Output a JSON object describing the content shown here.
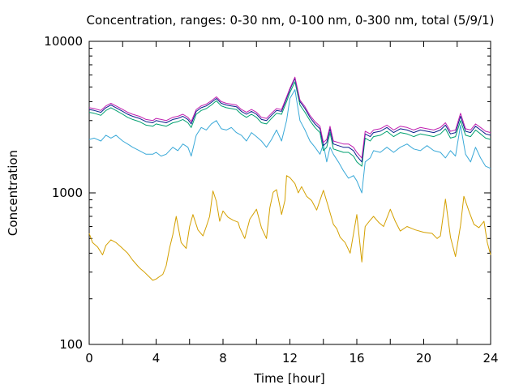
{
  "chart_data": {
    "type": "line",
    "title": "Concentration, ranges: 0-30 nm, 0-100 nm, 0-300 nm, total (5/9/1)",
    "xlabel": "Time [hour]",
    "ylabel": "Concentration",
    "xlim": [
      0,
      24
    ],
    "ylim": [
      100,
      10000
    ],
    "yscale": "log",
    "xticks": [
      "0",
      "4",
      "8",
      "12",
      "16",
      "20",
      "24"
    ],
    "yticks": [
      "100",
      "1000",
      "10000"
    ],
    "grid": false,
    "legend": "none",
    "series": [
      {
        "color": "#d4a000",
        "x": [
          0,
          0.2,
          0.5,
          0.8,
          1.0,
          1.3,
          1.6,
          1.9,
          2.3,
          2.6,
          3.0,
          3.3,
          3.5,
          3.8,
          4.0,
          4.2,
          4.4,
          4.6,
          4.8,
          5.0,
          5.2,
          5.5,
          5.8,
          6.0,
          6.2,
          6.5,
          6.8,
          7.0,
          7.2,
          7.4,
          7.6,
          7.8,
          8.0,
          8.3,
          8.6,
          8.9,
          9.0,
          9.3,
          9.6,
          10.0,
          10.3,
          10.6,
          10.8,
          11.0,
          11.2,
          11.5,
          11.7,
          11.8,
          12.0,
          12.3,
          12.5,
          12.7,
          13.0,
          13.3,
          13.6,
          14.0,
          14.3,
          14.6,
          14.8,
          15.0,
          15.3,
          15.6,
          16.0,
          16.3,
          16.5,
          16.8,
          17.0,
          17.3,
          17.6,
          18.0,
          18.3,
          18.6,
          19.0,
          19.5,
          20.0,
          20.5,
          20.8,
          21.0,
          21.3,
          21.6,
          21.9,
          22.2,
          22.4,
          22.7,
          23.0,
          23.3,
          23.6,
          23.8,
          24.0
        ],
        "y": [
          540,
          470,
          440,
          390,
          450,
          490,
          470,
          440,
          400,
          360,
          320,
          300,
          285,
          265,
          270,
          280,
          290,
          330,
          430,
          530,
          700,
          470,
          430,
          600,
          720,
          570,
          520,
          600,
          700,
          1030,
          880,
          650,
          760,
          690,
          660,
          640,
          590,
          500,
          670,
          780,
          590,
          500,
          800,
          1010,
          1050,
          720,
          890,
          1300,
          1260,
          1150,
          1000,
          1100,
          950,
          890,
          770,
          1040,
          810,
          620,
          580,
          510,
          470,
          400,
          720,
          350,
          600,
          660,
          700,
          640,
          600,
          780,
          650,
          560,
          600,
          570,
          550,
          540,
          500,
          520,
          910,
          510,
          380,
          610,
          950,
          760,
          620,
          590,
          650,
          470,
          390
        ]
      },
      {
        "color": "#3aa9d8",
        "x": [
          0,
          0.3,
          0.7,
          1.0,
          1.3,
          1.6,
          2.0,
          2.3,
          2.6,
          3.0,
          3.4,
          3.8,
          4.0,
          4.3,
          4.6,
          5.0,
          5.3,
          5.6,
          5.9,
          6.1,
          6.4,
          6.7,
          7.0,
          7.3,
          7.6,
          7.9,
          8.2,
          8.5,
          8.8,
          9.1,
          9.4,
          9.7,
          10.0,
          10.3,
          10.6,
          10.9,
          11.2,
          11.5,
          11.8,
          12.0,
          12.3,
          12.6,
          12.9,
          13.2,
          13.5,
          13.8,
          14.0,
          14.2,
          14.4,
          14.6,
          14.9,
          15.2,
          15.5,
          15.8,
          16.0,
          16.3,
          16.5,
          16.8,
          17.0,
          17.4,
          17.8,
          18.2,
          18.6,
          19.0,
          19.4,
          19.8,
          20.2,
          20.6,
          21.0,
          21.3,
          21.6,
          21.9,
          22.2,
          22.5,
          22.8,
          23.1,
          23.4,
          23.7,
          24.0
        ],
        "y": [
          2250,
          2300,
          2200,
          2400,
          2300,
          2400,
          2200,
          2100,
          2000,
          1900,
          1800,
          1800,
          1850,
          1750,
          1800,
          2000,
          1900,
          2100,
          2000,
          1750,
          2400,
          2700,
          2600,
          2850,
          3000,
          2650,
          2600,
          2700,
          2500,
          2400,
          2200,
          2500,
          2350,
          2200,
          2000,
          2250,
          2600,
          2200,
          3000,
          4200,
          4800,
          3000,
          2600,
          2200,
          2000,
          1800,
          2100,
          1600,
          2000,
          1800,
          1600,
          1400,
          1250,
          1300,
          1200,
          1000,
          1600,
          1700,
          1900,
          1850,
          2000,
          1850,
          2000,
          2100,
          1950,
          1900,
          2050,
          1900,
          1850,
          1700,
          1900,
          1750,
          2800,
          1800,
          1600,
          2000,
          1700,
          1500,
          1450
        ]
      },
      {
        "color": "#00a070",
        "x": [
          0,
          0.3,
          0.7,
          1.0,
          1.3,
          1.6,
          2.0,
          2.3,
          2.6,
          3.0,
          3.4,
          3.8,
          4.0,
          4.3,
          4.6,
          5.0,
          5.3,
          5.6,
          5.9,
          6.1,
          6.4,
          6.7,
          7.0,
          7.3,
          7.6,
          7.9,
          8.2,
          8.5,
          8.8,
          9.1,
          9.4,
          9.7,
          10.0,
          10.3,
          10.6,
          10.9,
          11.2,
          11.5,
          11.8,
          12.0,
          12.3,
          12.6,
          12.9,
          13.2,
          13.5,
          13.8,
          14.0,
          14.2,
          14.4,
          14.6,
          14.9,
          15.2,
          15.5,
          15.8,
          16.0,
          16.3,
          16.5,
          16.8,
          17.0,
          17.4,
          17.8,
          18.2,
          18.6,
          19.0,
          19.4,
          19.8,
          20.2,
          20.6,
          21.0,
          21.3,
          21.6,
          21.9,
          22.2,
          22.5,
          22.8,
          23.1,
          23.4,
          23.7,
          24.0
        ],
        "y": [
          3400,
          3350,
          3250,
          3500,
          3650,
          3500,
          3300,
          3150,
          3050,
          2950,
          2800,
          2750,
          2850,
          2800,
          2750,
          2900,
          2950,
          3050,
          2900,
          2700,
          3300,
          3500,
          3600,
          3800,
          4050,
          3750,
          3650,
          3600,
          3550,
          3300,
          3150,
          3300,
          3150,
          2900,
          2850,
          3100,
          3350,
          3300,
          4000,
          4600,
          5400,
          3800,
          3400,
          3000,
          2700,
          2500,
          1900,
          2000,
          2500,
          1950,
          1900,
          1850,
          1850,
          1750,
          1600,
          1500,
          2300,
          2200,
          2350,
          2400,
          2550,
          2350,
          2500,
          2450,
          2350,
          2450,
          2400,
          2350,
          2450,
          2650,
          2300,
          2350,
          3000,
          2400,
          2350,
          2600,
          2450,
          2300,
          2250
        ]
      },
      {
        "color": "#0a1e8c",
        "x": [
          0,
          0.3,
          0.7,
          1.0,
          1.3,
          1.6,
          2.0,
          2.3,
          2.6,
          3.0,
          3.4,
          3.8,
          4.0,
          4.3,
          4.6,
          5.0,
          5.3,
          5.6,
          5.9,
          6.1,
          6.4,
          6.7,
          7.0,
          7.3,
          7.6,
          7.9,
          8.2,
          8.5,
          8.8,
          9.1,
          9.4,
          9.7,
          10.0,
          10.3,
          10.6,
          10.9,
          11.2,
          11.5,
          11.8,
          12.0,
          12.3,
          12.6,
          12.9,
          13.2,
          13.5,
          13.8,
          14.0,
          14.2,
          14.4,
          14.6,
          14.9,
          15.2,
          15.5,
          15.8,
          16.0,
          16.3,
          16.5,
          16.8,
          17.0,
          17.4,
          17.8,
          18.2,
          18.6,
          19.0,
          19.4,
          19.8,
          20.2,
          20.6,
          21.0,
          21.3,
          21.6,
          21.9,
          22.2,
          22.5,
          22.8,
          23.1,
          23.4,
          23.7,
          24.0
        ],
        "y": [
          3550,
          3500,
          3400,
          3650,
          3800,
          3650,
          3450,
          3300,
          3200,
          3100,
          2950,
          2900,
          3000,
          2950,
          2900,
          3050,
          3100,
          3200,
          3050,
          2850,
          3450,
          3650,
          3750,
          3950,
          4200,
          3900,
          3800,
          3750,
          3700,
          3450,
          3300,
          3450,
          3300,
          3050,
          3000,
          3250,
          3500,
          3450,
          4200,
          4800,
          5700,
          4000,
          3600,
          3150,
          2850,
          2650,
          2050,
          2150,
          2650,
          2100,
          2050,
          2000,
          2000,
          1900,
          1750,
          1600,
          2450,
          2350,
          2500,
          2550,
          2700,
          2500,
          2650,
          2600,
          2500,
          2600,
          2550,
          2500,
          2600,
          2800,
          2450,
          2500,
          3200,
          2550,
          2500,
          2750,
          2600,
          2450,
          2400
        ]
      },
      {
        "color": "#c020b0",
        "x": [
          0,
          0.3,
          0.7,
          1.0,
          1.3,
          1.6,
          2.0,
          2.3,
          2.6,
          3.0,
          3.4,
          3.8,
          4.0,
          4.3,
          4.6,
          5.0,
          5.3,
          5.6,
          5.9,
          6.1,
          6.4,
          6.7,
          7.0,
          7.3,
          7.6,
          7.9,
          8.2,
          8.5,
          8.8,
          9.1,
          9.4,
          9.7,
          10.0,
          10.3,
          10.6,
          10.9,
          11.2,
          11.5,
          11.8,
          12.0,
          12.3,
          12.6,
          12.9,
          13.2,
          13.5,
          13.8,
          14.0,
          14.2,
          14.4,
          14.6,
          14.9,
          15.2,
          15.5,
          15.8,
          16.0,
          16.3,
          16.5,
          16.8,
          17.0,
          17.4,
          17.8,
          18.2,
          18.6,
          19.0,
          19.4,
          19.8,
          20.2,
          20.6,
          21.0,
          21.3,
          21.6,
          21.9,
          22.2,
          22.5,
          22.8,
          23.1,
          23.4,
          23.7,
          24.0
        ],
        "y": [
          3650,
          3600,
          3500,
          3750,
          3900,
          3750,
          3550,
          3400,
          3300,
          3200,
          3050,
          3000,
          3100,
          3050,
          3000,
          3150,
          3200,
          3300,
          3150,
          2950,
          3550,
          3750,
          3850,
          4050,
          4300,
          4000,
          3900,
          3850,
          3800,
          3550,
          3400,
          3550,
          3400,
          3150,
          3100,
          3350,
          3600,
          3550,
          4300,
          4900,
          5800,
          4100,
          3700,
          3250,
          2950,
          2750,
          2150,
          2250,
          2750,
          2200,
          2150,
          2100,
          2100,
          2000,
          1850,
          1700,
          2550,
          2450,
          2600,
          2650,
          2800,
          2600,
          2750,
          2700,
          2600,
          2700,
          2650,
          2600,
          2700,
          2900,
          2550,
          2600,
          3350,
          2650,
          2600,
          2850,
          2700,
          2550,
          2500
        ]
      }
    ]
  }
}
